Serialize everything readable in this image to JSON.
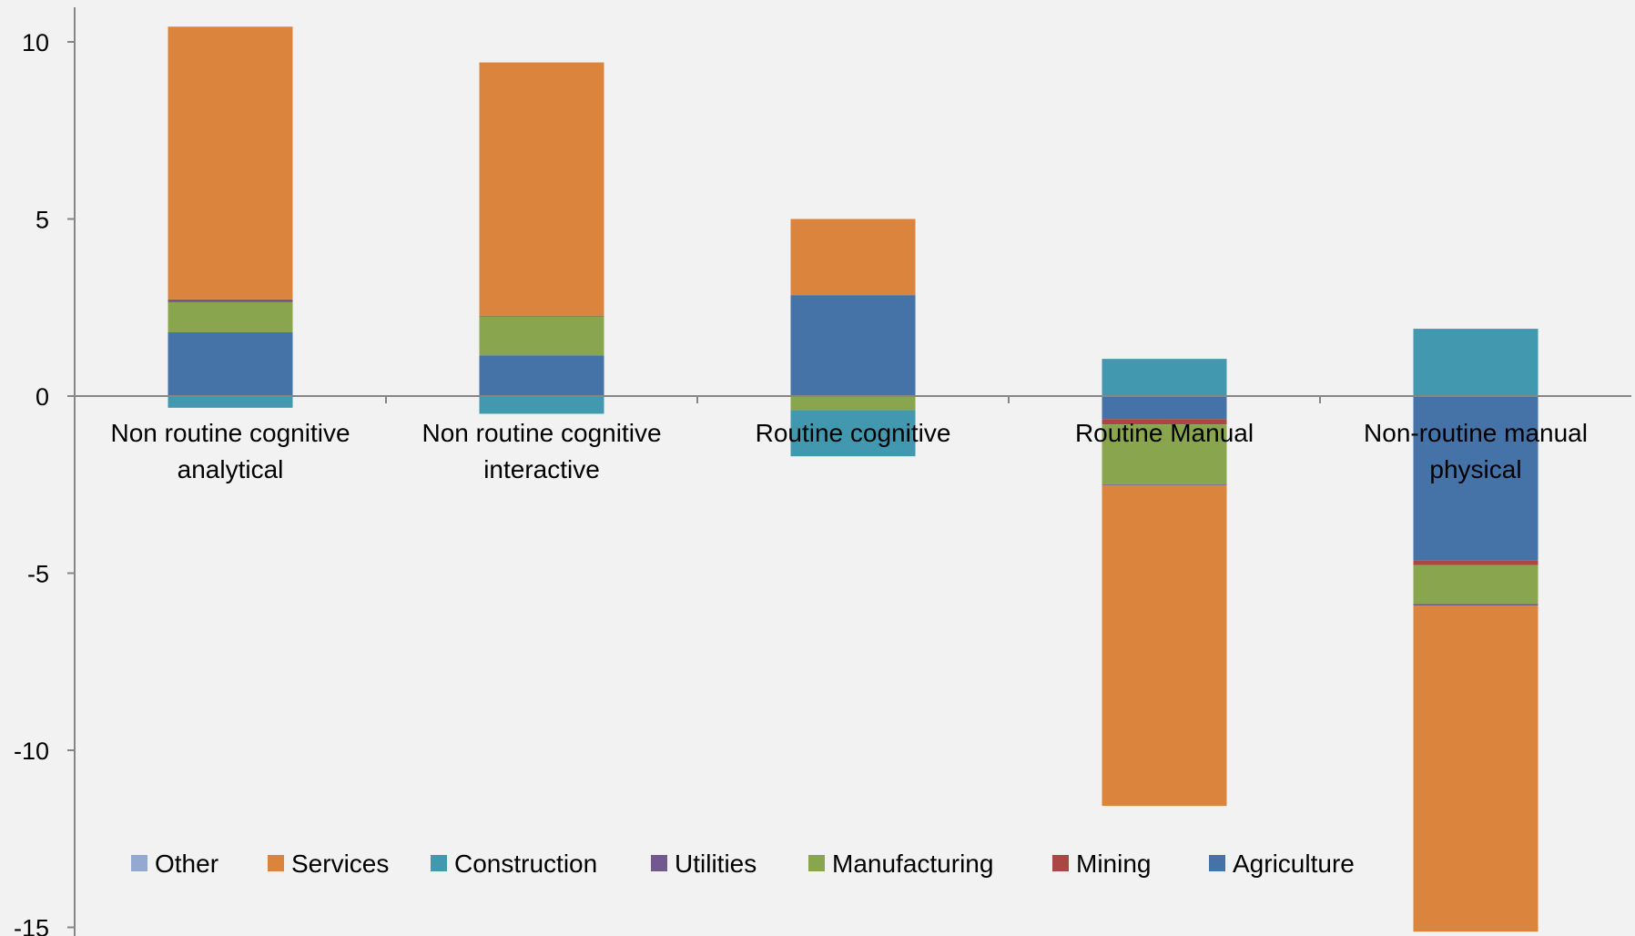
{
  "chart_data": {
    "type": "bar",
    "stacked": true,
    "categories": [
      [
        "Non routine cognitive",
        "analytical"
      ],
      [
        "Non routine cognitive",
        "interactive"
      ],
      [
        "Routine cognitive"
      ],
      [
        "Routine Manual"
      ],
      [
        "Non-routine manual",
        "physical"
      ]
    ],
    "series": [
      {
        "name": "Agriculture",
        "color": "#4572a7",
        "values": [
          1.8,
          1.15,
          2.85,
          -0.65,
          -4.65
        ]
      },
      {
        "name": "Mining",
        "color": "#aa4643",
        "values": [
          0.0,
          0.0,
          0.0,
          -0.15,
          -0.12
        ]
      },
      {
        "name": "Manufacturing",
        "color": "#89a54e",
        "values": [
          0.85,
          1.1,
          -0.4,
          -1.7,
          -1.1
        ]
      },
      {
        "name": "Utilities",
        "color": "#71588f",
        "values": [
          0.08,
          0.02,
          0.0,
          -0.02,
          -0.05
        ]
      },
      {
        "name": "Construction",
        "color": "#4198af",
        "values": [
          -0.33,
          -0.5,
          -1.3,
          1.05,
          1.9
        ]
      },
      {
        "name": "Services",
        "color": "#db843d",
        "values": [
          7.7,
          7.15,
          2.15,
          -9.05,
          -9.2
        ]
      },
      {
        "name": "Other",
        "color": "#93a9cf",
        "values": [
          0,
          0,
          0,
          0,
          0
        ]
      }
    ],
    "legend_order": [
      "Other",
      "Services",
      "Construction",
      "Utilities",
      "Manufacturing",
      "Mining",
      "Agriculture"
    ],
    "y_ticks": [
      10,
      5,
      0,
      -5,
      -10,
      -15
    ],
    "ylim": [
      -15,
      11
    ],
    "legend_position": "bottom",
    "grid": false
  }
}
